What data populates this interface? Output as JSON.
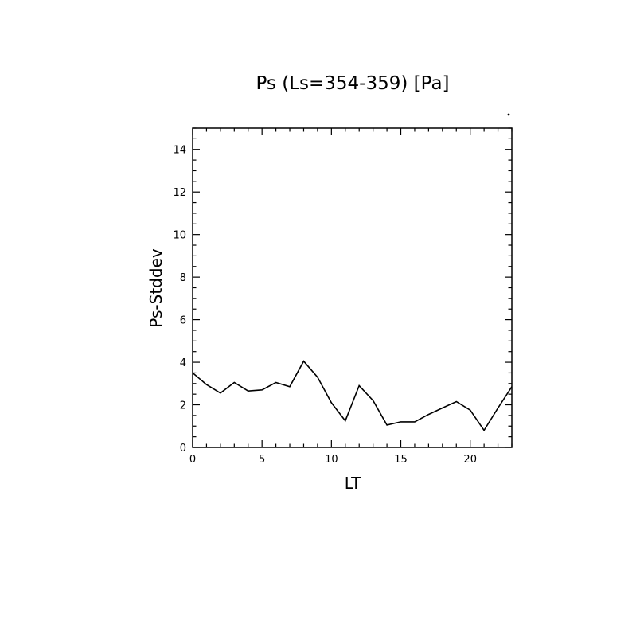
{
  "chart_data": {
    "type": "line",
    "title": "Ps (Ls=354-359) [Pa]",
    "xlabel": "LT",
    "ylabel": "Ps-Stddev",
    "xlim": [
      0,
      23
    ],
    "ylim": [
      0,
      15
    ],
    "xticks": [
      0,
      5,
      10,
      15,
      20
    ],
    "yticks": [
      0,
      2,
      4,
      6,
      8,
      10,
      12,
      14
    ],
    "grid": false,
    "series": [
      {
        "x": [
          0,
          1,
          2,
          3,
          4,
          5,
          6,
          7,
          8,
          9,
          10,
          11,
          12,
          13,
          14,
          15,
          16,
          17,
          18,
          19,
          20,
          21,
          22,
          23
        ],
        "values": [
          3.5,
          2.95,
          2.55,
          3.05,
          2.65,
          2.7,
          3.05,
          2.85,
          4.05,
          3.3,
          2.1,
          1.25,
          2.9,
          2.2,
          1.05,
          1.2,
          1.2,
          1.55,
          1.85,
          2.15,
          1.75,
          0.8,
          1.85,
          2.85
        ]
      }
    ]
  }
}
